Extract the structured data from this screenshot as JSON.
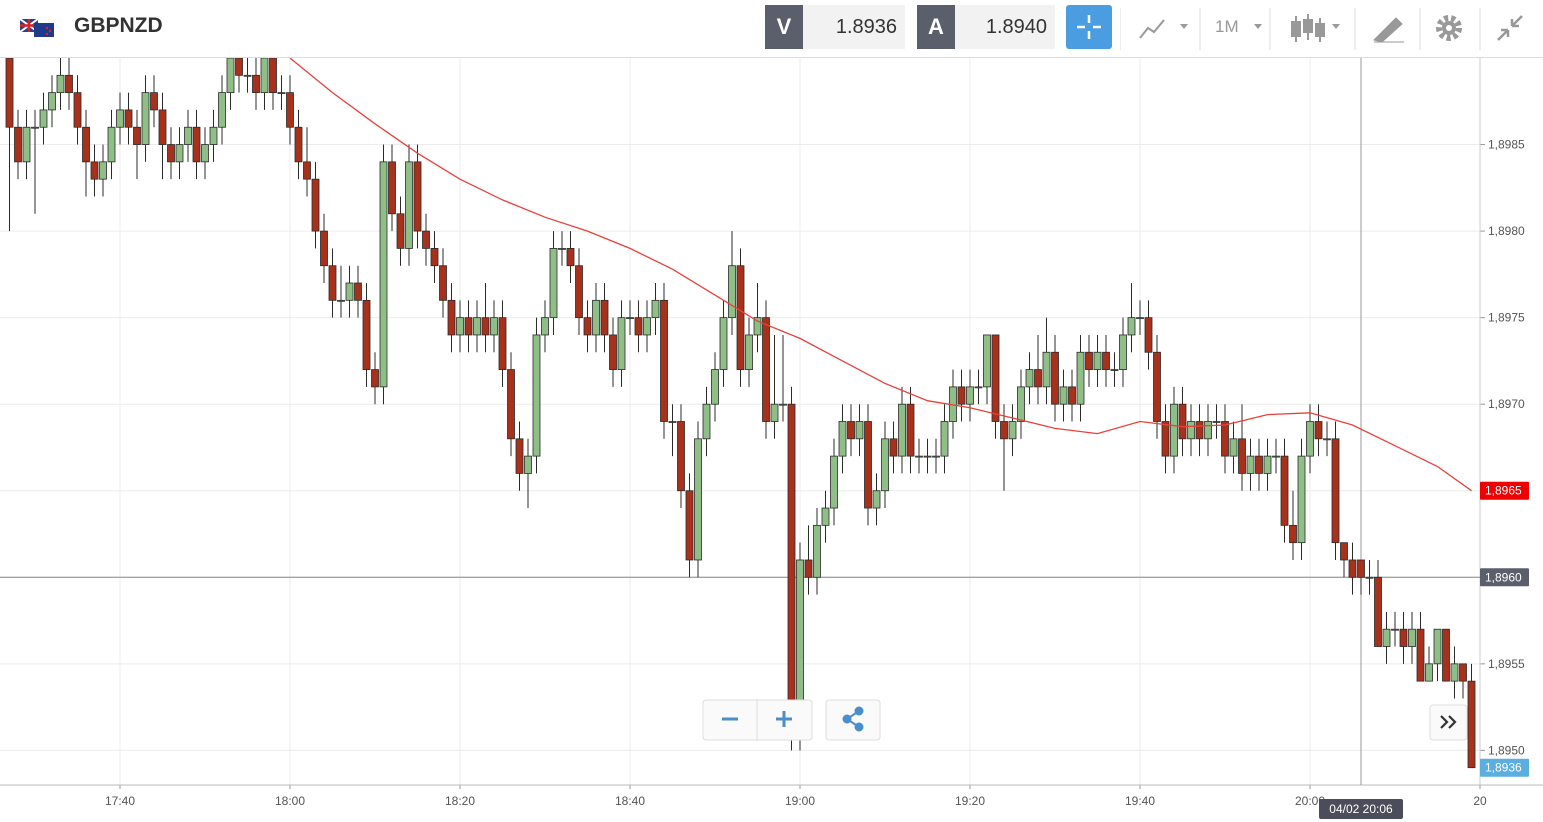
{
  "header": {
    "symbol": "GBPNZD",
    "sell_label": "V",
    "sell_price": "1.8936",
    "buy_label": "A",
    "buy_price": "1.8940",
    "timeframe": "1M"
  },
  "chart_data": {
    "type": "candlestick",
    "up_color": "#8fbf86",
    "down_color": "#a8311c",
    "outline_color": "#2b2b2b",
    "grid": true,
    "x": [
      "17:27",
      "17:28",
      "17:29",
      "17:30",
      "17:31",
      "17:32",
      "17:33",
      "17:34",
      "17:35",
      "17:36",
      "17:37",
      "17:38",
      "17:39",
      "17:40",
      "17:41",
      "17:42",
      "17:43",
      "17:44",
      "17:45",
      "17:46",
      "17:47",
      "17:48",
      "17:49",
      "17:50",
      "17:51",
      "17:52",
      "17:53",
      "17:54",
      "17:55",
      "17:56",
      "17:57",
      "17:58",
      "17:59",
      "18:00",
      "18:01",
      "18:02",
      "18:03",
      "18:04",
      "18:05",
      "18:06",
      "18:07",
      "18:08",
      "18:09",
      "18:10",
      "18:11",
      "18:12",
      "18:13",
      "18:14",
      "18:15",
      "18:16",
      "18:17",
      "18:18",
      "18:19",
      "18:20",
      "18:21",
      "18:22",
      "18:23",
      "18:24",
      "18:25",
      "18:26",
      "18:27",
      "18:28",
      "18:29",
      "18:30",
      "18:31",
      "18:32",
      "18:33",
      "18:34",
      "18:35",
      "18:36",
      "18:37",
      "18:38",
      "18:39",
      "18:40",
      "18:41",
      "18:42",
      "18:43",
      "18:44",
      "18:45",
      "18:46",
      "18:47",
      "18:48",
      "18:49",
      "18:50",
      "18:51",
      "18:52",
      "18:53",
      "18:54",
      "18:55",
      "18:56",
      "18:57",
      "18:58",
      "18:59",
      "19:00",
      "19:01",
      "19:02",
      "19:03",
      "19:04",
      "19:05",
      "19:06",
      "19:07",
      "19:08",
      "19:09",
      "19:10",
      "19:11",
      "19:12",
      "19:13",
      "19:14",
      "19:15",
      "19:16",
      "19:17",
      "19:18",
      "19:19",
      "19:20",
      "19:21",
      "19:22",
      "19:23",
      "19:24",
      "19:25",
      "19:26",
      "19:27",
      "19:28",
      "19:29",
      "19:30",
      "19:31",
      "19:32",
      "19:33",
      "19:34",
      "19:35",
      "19:36",
      "19:37",
      "19:38",
      "19:39",
      "19:40",
      "19:41",
      "19:42",
      "19:43",
      "19:44",
      "19:45",
      "19:46",
      "19:47",
      "19:48",
      "19:49",
      "19:50",
      "19:51",
      "19:52",
      "19:53",
      "19:54",
      "19:55",
      "19:56",
      "19:57",
      "19:58",
      "19:59",
      "20:00",
      "20:01",
      "20:02",
      "20:03",
      "20:04",
      "20:05",
      "20:06",
      "20:07",
      "20:08",
      "20:09",
      "20:10",
      "20:11",
      "20:12",
      "20:13",
      "20:14",
      "20:15",
      "20:16",
      "20:17",
      "20:18",
      "20:19"
    ],
    "candles": [
      [
        1.899,
        1.8991,
        1.898,
        1.8986
      ],
      [
        1.8986,
        1.8987,
        1.8983,
        1.8984
      ],
      [
        1.8984,
        1.8987,
        1.8983,
        1.8986
      ],
      [
        1.8986,
        1.8987,
        1.8981,
        1.8986
      ],
      [
        1.8986,
        1.8988,
        1.8985,
        1.8987
      ],
      [
        1.8987,
        1.8989,
        1.8986,
        1.8988
      ],
      [
        1.8988,
        1.899,
        1.8987,
        1.8989
      ],
      [
        1.8989,
        1.899,
        1.8987,
        1.8988
      ],
      [
        1.8988,
        1.8989,
        1.8985,
        1.8986
      ],
      [
        1.8986,
        1.8987,
        1.8982,
        1.8984
      ],
      [
        1.8984,
        1.8985,
        1.8982,
        1.8983
      ],
      [
        1.8983,
        1.8985,
        1.8982,
        1.8984
      ],
      [
        1.8984,
        1.8987,
        1.8983,
        1.8986
      ],
      [
        1.8986,
        1.8988,
        1.8985,
        1.8987
      ],
      [
        1.8987,
        1.8988,
        1.8985,
        1.8986
      ],
      [
        1.8986,
        1.8987,
        1.8983,
        1.8985
      ],
      [
        1.8985,
        1.8989,
        1.8984,
        1.8988
      ],
      [
        1.8988,
        1.8989,
        1.8986,
        1.8987
      ],
      [
        1.8987,
        1.8988,
        1.8983,
        1.8985
      ],
      [
        1.8985,
        1.8986,
        1.8983,
        1.8984
      ],
      [
        1.8984,
        1.8986,
        1.8983,
        1.8985
      ],
      [
        1.8985,
        1.8987,
        1.8984,
        1.8986
      ],
      [
        1.8986,
        1.8987,
        1.8983,
        1.8984
      ],
      [
        1.8984,
        1.8986,
        1.8983,
        1.8985
      ],
      [
        1.8985,
        1.8987,
        1.8984,
        1.8986
      ],
      [
        1.8986,
        1.8989,
        1.8985,
        1.8988
      ],
      [
        1.8988,
        1.8991,
        1.8987,
        1.899
      ],
      [
        1.899,
        1.8991,
        1.8988,
        1.8989
      ],
      [
        1.8989,
        1.899,
        1.8988,
        1.8989
      ],
      [
        1.8989,
        1.899,
        1.8987,
        1.8988
      ],
      [
        1.8988,
        1.8991,
        1.8987,
        1.899
      ],
      [
        1.899,
        1.8991,
        1.8987,
        1.8988
      ],
      [
        1.8988,
        1.8989,
        1.8987,
        1.8988
      ],
      [
        1.8988,
        1.8989,
        1.8985,
        1.8986
      ],
      [
        1.8986,
        1.8987,
        1.8983,
        1.8984
      ],
      [
        1.8984,
        1.8986,
        1.8982,
        1.8983
      ],
      [
        1.8983,
        1.8984,
        1.8979,
        1.898
      ],
      [
        1.898,
        1.8981,
        1.8977,
        1.8978
      ],
      [
        1.8978,
        1.8979,
        1.8975,
        1.8976
      ],
      [
        1.8976,
        1.8978,
        1.8975,
        1.8976
      ],
      [
        1.8976,
        1.8978,
        1.8975,
        1.8977
      ],
      [
        1.8977,
        1.8978,
        1.8975,
        1.8976
      ],
      [
        1.8976,
        1.8977,
        1.8971,
        1.8972
      ],
      [
        1.8972,
        1.8973,
        1.897,
        1.8971
      ],
      [
        1.8971,
        1.8985,
        1.897,
        1.8984
      ],
      [
        1.8984,
        1.8985,
        1.898,
        1.8981
      ],
      [
        1.8981,
        1.8982,
        1.8978,
        1.8979
      ],
      [
        1.8979,
        1.8985,
        1.8978,
        1.8984
      ],
      [
        1.8984,
        1.8985,
        1.8979,
        1.898
      ],
      [
        1.898,
        1.8981,
        1.8978,
        1.8979
      ],
      [
        1.8979,
        1.898,
        1.8977,
        1.8978
      ],
      [
        1.8978,
        1.8979,
        1.8975,
        1.8976
      ],
      [
        1.8976,
        1.8977,
        1.8973,
        1.8974
      ],
      [
        1.8974,
        1.8976,
        1.8973,
        1.8975
      ],
      [
        1.8975,
        1.8976,
        1.8973,
        1.8974
      ],
      [
        1.8974,
        1.8976,
        1.8973,
        1.8975
      ],
      [
        1.8975,
        1.8977,
        1.8973,
        1.8974
      ],
      [
        1.8974,
        1.8976,
        1.8973,
        1.8975
      ],
      [
        1.8975,
        1.8976,
        1.8971,
        1.8972
      ],
      [
        1.8972,
        1.8973,
        1.8967,
        1.8968
      ],
      [
        1.8968,
        1.8969,
        1.8965,
        1.8966
      ],
      [
        1.8966,
        1.8968,
        1.8964,
        1.8967
      ],
      [
        1.8967,
        1.8975,
        1.8966,
        1.8974
      ],
      [
        1.8974,
        1.8976,
        1.8973,
        1.8975
      ],
      [
        1.8975,
        1.898,
        1.8974,
        1.8979
      ],
      [
        1.8979,
        1.898,
        1.8978,
        1.8979
      ],
      [
        1.8979,
        1.898,
        1.8977,
        1.8978
      ],
      [
        1.8978,
        1.8979,
        1.8974,
        1.8975
      ],
      [
        1.8975,
        1.8976,
        1.8973,
        1.8974
      ],
      [
        1.8974,
        1.8977,
        1.8973,
        1.8976
      ],
      [
        1.8976,
        1.8977,
        1.8973,
        1.8974
      ],
      [
        1.8974,
        1.8975,
        1.8971,
        1.8972
      ],
      [
        1.8972,
        1.8976,
        1.8971,
        1.8975
      ],
      [
        1.8975,
        1.8976,
        1.8974,
        1.8975
      ],
      [
        1.8975,
        1.8976,
        1.8973,
        1.8974
      ],
      [
        1.8974,
        1.8976,
        1.8973,
        1.8975
      ],
      [
        1.8975,
        1.8977,
        1.8974,
        1.8976
      ],
      [
        1.8976,
        1.8977,
        1.8968,
        1.8969
      ],
      [
        1.8969,
        1.897,
        1.8967,
        1.8969
      ],
      [
        1.8969,
        1.897,
        1.8964,
        1.8965
      ],
      [
        1.8965,
        1.8966,
        1.896,
        1.8961
      ],
      [
        1.8961,
        1.8969,
        1.896,
        1.8968
      ],
      [
        1.8968,
        1.8971,
        1.8967,
        1.897
      ],
      [
        1.897,
        1.8973,
        1.8969,
        1.8972
      ],
      [
        1.8972,
        1.8976,
        1.8971,
        1.8975
      ],
      [
        1.8975,
        1.898,
        1.8974,
        1.8978
      ],
      [
        1.8978,
        1.8979,
        1.8971,
        1.8972
      ],
      [
        1.8972,
        1.8975,
        1.8971,
        1.8974
      ],
      [
        1.8974,
        1.8977,
        1.8973,
        1.8975
      ],
      [
        1.8975,
        1.8976,
        1.8968,
        1.8969
      ],
      [
        1.8969,
        1.8974,
        1.8968,
        1.897
      ],
      [
        1.897,
        1.8974,
        1.8969,
        1.897
      ],
      [
        1.897,
        1.8971,
        1.895,
        1.8951
      ],
      [
        1.8951,
        1.8962,
        1.895,
        1.8961
      ],
      [
        1.8961,
        1.8963,
        1.8959,
        1.896
      ],
      [
        1.896,
        1.8964,
        1.8959,
        1.8963
      ],
      [
        1.8963,
        1.8965,
        1.8962,
        1.8964
      ],
      [
        1.8964,
        1.8968,
        1.8963,
        1.8967
      ],
      [
        1.8967,
        1.897,
        1.8966,
        1.8969
      ],
      [
        1.8969,
        1.897,
        1.8967,
        1.8968
      ],
      [
        1.8968,
        1.897,
        1.8967,
        1.8969
      ],
      [
        1.8969,
        1.897,
        1.8963,
        1.8964
      ],
      [
        1.8964,
        1.8966,
        1.8963,
        1.8965
      ],
      [
        1.8965,
        1.8969,
        1.8964,
        1.8968
      ],
      [
        1.8968,
        1.8969,
        1.8966,
        1.8967
      ],
      [
        1.8967,
        1.8971,
        1.8966,
        1.897
      ],
      [
        1.897,
        1.8971,
        1.8966,
        1.8967
      ],
      [
        1.8967,
        1.8968,
        1.8966,
        1.8967
      ],
      [
        1.8967,
        1.8968,
        1.8966,
        1.8967
      ],
      [
        1.8967,
        1.8968,
        1.8966,
        1.8967
      ],
      [
        1.8967,
        1.897,
        1.8966,
        1.8969
      ],
      [
        1.8969,
        1.8972,
        1.8968,
        1.8971
      ],
      [
        1.8971,
        1.8972,
        1.8969,
        1.897
      ],
      [
        1.897,
        1.8972,
        1.8969,
        1.8971
      ],
      [
        1.8971,
        1.8972,
        1.897,
        1.8971
      ],
      [
        1.8971,
        1.8974,
        1.897,
        1.8974
      ],
      [
        1.8974,
        1.8974,
        1.8968,
        1.8969
      ],
      [
        1.8969,
        1.897,
        1.8965,
        1.8968
      ],
      [
        1.8968,
        1.897,
        1.8967,
        1.8969
      ],
      [
        1.8969,
        1.8972,
        1.8968,
        1.8971
      ],
      [
        1.8971,
        1.8973,
        1.897,
        1.8972
      ],
      [
        1.8972,
        1.8974,
        1.897,
        1.8971
      ],
      [
        1.8971,
        1.8975,
        1.897,
        1.8973
      ],
      [
        1.8973,
        1.8974,
        1.8969,
        1.897
      ],
      [
        1.897,
        1.8972,
        1.8969,
        1.8971
      ],
      [
        1.8971,
        1.8972,
        1.8969,
        1.897
      ],
      [
        1.897,
        1.8974,
        1.8969,
        1.8973
      ],
      [
        1.8973,
        1.8974,
        1.8971,
        1.8972
      ],
      [
        1.8972,
        1.8974,
        1.8971,
        1.8973
      ],
      [
        1.8973,
        1.8974,
        1.8971,
        1.8972
      ],
      [
        1.8972,
        1.8973,
        1.8971,
        1.8972
      ],
      [
        1.8972,
        1.8975,
        1.8971,
        1.8974
      ],
      [
        1.8974,
        1.8977,
        1.8973,
        1.8975
      ],
      [
        1.8975,
        1.8976,
        1.8974,
        1.8975
      ],
      [
        1.8975,
        1.8976,
        1.8972,
        1.8973
      ],
      [
        1.8973,
        1.8974,
        1.8968,
        1.8969
      ],
      [
        1.8969,
        1.897,
        1.8966,
        1.8967
      ],
      [
        1.8967,
        1.8971,
        1.8966,
        1.897
      ],
      [
        1.897,
        1.8971,
        1.8967,
        1.8968
      ],
      [
        1.8968,
        1.897,
        1.8967,
        1.8969
      ],
      [
        1.8969,
        1.897,
        1.8967,
        1.8968
      ],
      [
        1.8968,
        1.897,
        1.8967,
        1.8969
      ],
      [
        1.8969,
        1.897,
        1.8968,
        1.8969
      ],
      [
        1.8969,
        1.897,
        1.8966,
        1.8967
      ],
      [
        1.8967,
        1.8969,
        1.8966,
        1.8968
      ],
      [
        1.8968,
        1.897,
        1.8965,
        1.8966
      ],
      [
        1.8966,
        1.8968,
        1.8965,
        1.8967
      ],
      [
        1.8967,
        1.8968,
        1.8965,
        1.8966
      ],
      [
        1.8966,
        1.8968,
        1.8965,
        1.8967
      ],
      [
        1.8967,
        1.8968,
        1.8966,
        1.8967
      ],
      [
        1.8967,
        1.8968,
        1.8962,
        1.8963
      ],
      [
        1.8963,
        1.8965,
        1.8961,
        1.8962
      ],
      [
        1.8962,
        1.8968,
        1.8961,
        1.8967
      ],
      [
        1.8967,
        1.897,
        1.8966,
        1.8969
      ],
      [
        1.8969,
        1.897,
        1.8967,
        1.8968
      ],
      [
        1.8968,
        1.8969,
        1.8967,
        1.8968
      ],
      [
        1.8968,
        1.8969,
        1.8961,
        1.8962
      ],
      [
        1.8962,
        1.8962,
        1.896,
        1.8961
      ],
      [
        1.8961,
        1.8962,
        1.8959,
        1.896
      ],
      [
        1.8961,
        1.8961,
        1.8959,
        1.896
      ],
      [
        1.896,
        1.8961,
        1.8959,
        1.896
      ],
      [
        1.896,
        1.8961,
        1.8956,
        1.8956
      ],
      [
        1.8956,
        1.8958,
        1.8955,
        1.8957
      ],
      [
        1.8957,
        1.8958,
        1.8956,
        1.8957
      ],
      [
        1.8957,
        1.8958,
        1.8955,
        1.8956
      ],
      [
        1.8956,
        1.8958,
        1.8955,
        1.8957
      ],
      [
        1.8957,
        1.8958,
        1.8954,
        1.8954
      ],
      [
        1.8954,
        1.8956,
        1.8954,
        1.8955
      ],
      [
        1.8955,
        1.8957,
        1.8954,
        1.8957
      ],
      [
        1.8957,
        1.8957,
        1.8954,
        1.8954
      ],
      [
        1.8954,
        1.8956,
        1.8953,
        1.8955
      ],
      [
        1.8955,
        1.8955,
        1.8953,
        1.8954
      ],
      [
        1.8954,
        1.8955,
        1.8949,
        1.8949
      ]
    ],
    "indicator": {
      "color": "#e8413a",
      "x": [
        "18:00",
        "18:05",
        "18:10",
        "18:15",
        "18:20",
        "18:25",
        "18:30",
        "18:35",
        "18:40",
        "18:45",
        "18:50",
        "18:55",
        "19:00",
        "19:05",
        "19:10",
        "19:15",
        "19:20",
        "19:25",
        "19:30",
        "19:35",
        "19:40",
        "19:45",
        "19:50",
        "19:55",
        "20:00",
        "20:05",
        "20:10",
        "20:15",
        "20:19"
      ],
      "values": [
        1.899,
        1.8988,
        1.89862,
        1.89845,
        1.8983,
        1.89818,
        1.89808,
        1.898,
        1.8979,
        1.89778,
        1.89763,
        1.89748,
        1.89738,
        1.89725,
        1.89712,
        1.89702,
        1.89698,
        1.89692,
        1.89686,
        1.89683,
        1.8969,
        1.89687,
        1.89688,
        1.89694,
        1.89695,
        1.89688,
        1.89676,
        1.89664,
        1.8965
      ]
    },
    "xlim": [
      "17:26",
      "20:20"
    ],
    "xticks": [
      "17:40",
      "18:00",
      "18:20",
      "18:40",
      "19:00",
      "19:20",
      "19:40",
      "20:00",
      {
        "value": "20:20",
        "label": "20"
      }
    ],
    "ylim": [
      1.8948,
      1.899
    ],
    "yticks": [
      {
        "value": 1.895,
        "label": "1,8950"
      },
      {
        "value": 1.8955,
        "label": "1,8955"
      },
      {
        "value": 1.896,
        "label": "1,8960"
      },
      {
        "value": 1.8965,
        "label": "1,8965"
      },
      {
        "value": 1.897,
        "label": "1,8970"
      },
      {
        "value": 1.8975,
        "label": "1,8975"
      },
      {
        "value": 1.898,
        "label": "1,8980"
      },
      {
        "value": 1.8985,
        "label": "1,8985"
      }
    ],
    "indicator_label": {
      "value": 1.8965,
      "label": "1,8965",
      "color": "#ee0000"
    },
    "crosshair": {
      "x": "20:06",
      "x_label": "04/02 20:06",
      "y": {
        "value": 1.896,
        "label": "1,8960"
      }
    },
    "price_label": {
      "label": "1,8936",
      "color": "#5aaee0"
    }
  }
}
